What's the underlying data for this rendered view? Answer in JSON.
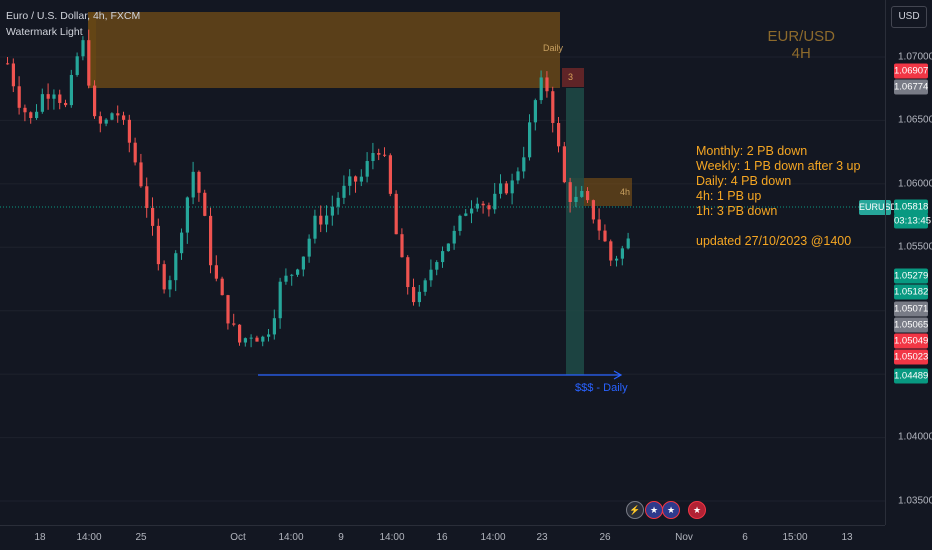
{
  "legend": {
    "title": "Euro / U.S. Dollar, 4h, FXCM",
    "watermark": "Watermark Light"
  },
  "currency_button": "USD",
  "pair_overlay": {
    "line1": "EUR/USD",
    "line2": "4H"
  },
  "notes": {
    "lines": [
      "Monthly: 2 PB down",
      "Weekly: 1 PB down after 3 up",
      "Daily: 4 PB down",
      "4h: 1 PB up",
      "1h: 3 PB down"
    ],
    "updated": "updated 27/10/2023 @1400"
  },
  "zones": {
    "daily_label": "Daily",
    "h4_label": "4h",
    "number_label": "3"
  },
  "liquidity_label": "$$$ - Daily",
  "symbol_badge": {
    "name": "EURUSD"
  },
  "price_scale": {
    "ticks": [
      "1.07000",
      "1.06500",
      "1.06000",
      "1.05500",
      "1.04000",
      "1.03500"
    ],
    "badges": [
      {
        "value": "1.06907",
        "color": "#f23645"
      },
      {
        "value": "1.06774",
        "color": "#787b86"
      },
      {
        "value": "1.05818",
        "sub": "03:13:45",
        "color": "#089981"
      },
      {
        "value": "1.05279",
        "color": "#089981"
      },
      {
        "value": "1.05182",
        "color": "#089981"
      },
      {
        "value": "1.05071",
        "color": "#787b86"
      },
      {
        "value": "1.05065",
        "color": "#787b86"
      },
      {
        "value": "1.05049",
        "color": "#f23645"
      },
      {
        "value": "1.05023",
        "color": "#f23645"
      },
      {
        "value": "1.04489",
        "color": "#089981"
      }
    ]
  },
  "time_axis": [
    "18",
    "14:00",
    "25",
    "Oct",
    "14:00",
    "9",
    "14:00",
    "16",
    "14:00",
    "23",
    "26",
    "Nov",
    "6",
    "15:00",
    "13"
  ],
  "chart_data": {
    "type": "candlestick",
    "symbol": "EURUSD",
    "timeframe": "4h",
    "last_price": 1.05818,
    "countdown": "03:13:45",
    "ylim": [
      1.033,
      1.0745
    ],
    "close_path": [
      [
        0,
        1.0695
      ],
      [
        8,
        1.0665
      ],
      [
        16,
        1.065
      ],
      [
        24,
        1.067
      ],
      [
        32,
        1.0675
      ],
      [
        40,
        1.066
      ],
      [
        48,
        1.07
      ],
      [
        54,
        1.0715
      ],
      [
        58,
        1.065
      ],
      [
        66,
        1.0645
      ],
      [
        74,
        1.066
      ],
      [
        82,
        1.064
      ],
      [
        90,
        1.061
      ],
      [
        98,
        1.0575
      ],
      [
        106,
        1.052
      ],
      [
        114,
        1.053
      ],
      [
        122,
        1.058
      ],
      [
        128,
        1.061
      ],
      [
        134,
        1.0585
      ],
      [
        140,
        1.054
      ],
      [
        146,
        1.0515
      ],
      [
        152,
        1.0495
      ],
      [
        160,
        1.0475
      ],
      [
        168,
        1.0482
      ],
      [
        176,
        1.0478
      ],
      [
        182,
        1.049
      ],
      [
        188,
        1.052
      ],
      [
        196,
        1.053
      ],
      [
        204,
        1.0545
      ],
      [
        212,
        1.057
      ],
      [
        220,
        1.0575
      ],
      [
        228,
        1.059
      ],
      [
        236,
        1.06
      ],
      [
        244,
        1.0605
      ],
      [
        252,
        1.0625
      ],
      [
        258,
        1.063
      ],
      [
        264,
        1.059
      ],
      [
        270,
        1.0545
      ],
      [
        276,
        1.052
      ],
      [
        282,
        1.0505
      ],
      [
        288,
        1.052
      ],
      [
        294,
        1.054
      ],
      [
        300,
        1.055
      ],
      [
        308,
        1.056
      ],
      [
        316,
        1.058
      ],
      [
        324,
        1.059
      ],
      [
        332,
        1.058
      ],
      [
        340,
        1.0595
      ],
      [
        348,
        1.06
      ],
      [
        356,
        1.0625
      ],
      [
        364,
        1.0665
      ],
      [
        370,
        1.0685
      ],
      [
        374,
        1.0665
      ],
      [
        378,
        1.064
      ],
      [
        384,
        1.06
      ],
      [
        390,
        1.0585
      ],
      [
        396,
        1.059
      ],
      [
        404,
        1.0575
      ],
      [
        410,
        1.056
      ],
      [
        416,
        1.054
      ],
      [
        422,
        1.0545
      ],
      [
        428,
        1.0555
      ]
    ],
    "zones": [
      {
        "label": "Daily",
        "price_top": 1.0745,
        "price_bottom": 1.06774
      },
      {
        "label": "3",
        "price_top": 1.06907,
        "price_bottom": 1.06774
      },
      {
        "label": "4h",
        "price_top": 1.0605,
        "price_bottom": 1.0582
      }
    ],
    "liquidity_line": {
      "label": "$$$ - Daily",
      "price": 1.04489
    }
  }
}
